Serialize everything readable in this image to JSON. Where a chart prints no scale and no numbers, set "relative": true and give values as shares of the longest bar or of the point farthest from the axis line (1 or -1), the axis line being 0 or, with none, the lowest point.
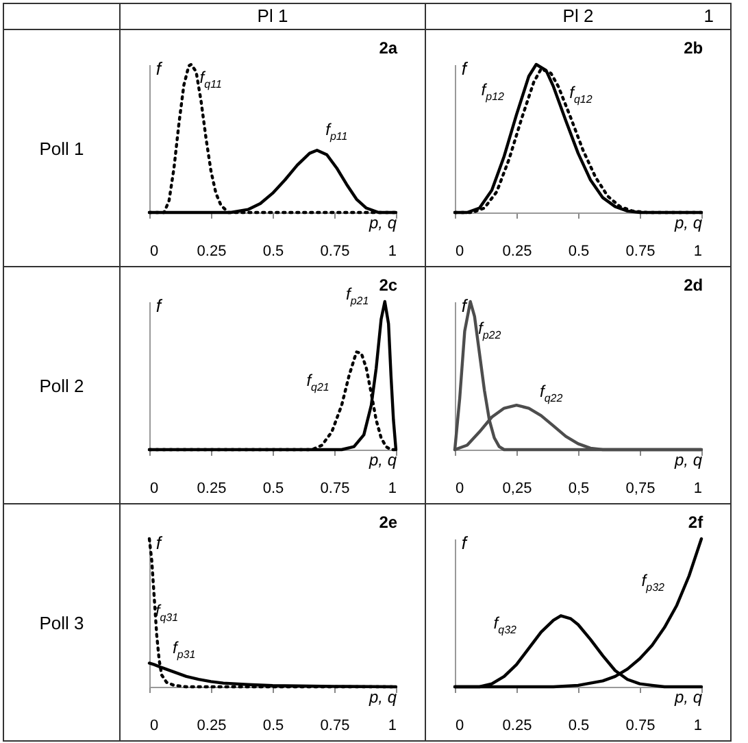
{
  "chart_data": [
    {
      "type": "line",
      "title": "2a",
      "xlabel": "p, q",
      "ylabel": "f",
      "relative": true,
      "xlim": [
        0,
        1
      ],
      "xticks": [
        0,
        0.25,
        0.5,
        0.75,
        1
      ],
      "annotations": [
        "Pl 1",
        "Poll 1",
        {
          "text": "f$_{q11}$",
          "x": 0.21,
          "y": 0.75
        },
        {
          "text": "f$_{p11}$",
          "x": 0.72,
          "y": 0.39
        }
      ],
      "series": [
        {
          "color": "#000000",
          "line_style": "dotted",
          "x": [
            0,
            0.06,
            0.08,
            0.1,
            0.12,
            0.14,
            0.16,
            0.17,
            0.19,
            0.21,
            0.23,
            0.25,
            0.27,
            0.29,
            0.32,
            1
          ],
          "values": [
            0,
            0,
            0.08,
            0.3,
            0.6,
            0.86,
            0.99,
            1,
            0.95,
            0.75,
            0.5,
            0.28,
            0.13,
            0.05,
            0,
            0
          ]
        },
        {
          "color": "#000000",
          "line_style": "solid",
          "x": [
            0,
            0.33,
            0.4,
            0.45,
            0.5,
            0.55,
            0.6,
            0.65,
            0.68,
            0.72,
            0.76,
            0.8,
            0.84,
            0.88,
            0.93,
            1
          ],
          "values": [
            0,
            0,
            0.02,
            0.06,
            0.13,
            0.22,
            0.32,
            0.4,
            0.42,
            0.39,
            0.3,
            0.19,
            0.09,
            0.03,
            0,
            0
          ]
        }
      ]
    },
    {
      "type": "line",
      "title": "2b",
      "xlabel": "p, q",
      "ylabel": "f",
      "relative": true,
      "xlim": [
        0,
        1
      ],
      "xticks": [
        0,
        0.25,
        0.5,
        0.75,
        1
      ],
      "annotations": [
        "Pl 2",
        "1",
        {
          "text": "f$_{p12}$",
          "x": 0.25,
          "y": 0.66
        },
        {
          "text": "f$_{q12}$",
          "x": 0.47,
          "y": 0.64
        }
      ],
      "series": [
        {
          "color": "#000000",
          "line_style": "solid",
          "x": [
            0,
            0.05,
            0.1,
            0.15,
            0.2,
            0.25,
            0.3,
            0.33,
            0.37,
            0.4,
            0.45,
            0.5,
            0.55,
            0.6,
            0.65,
            0.7,
            0.75,
            1
          ],
          "values": [
            0,
            0,
            0.03,
            0.15,
            0.38,
            0.66,
            0.92,
            1,
            0.96,
            0.85,
            0.62,
            0.4,
            0.22,
            0.1,
            0.04,
            0.01,
            0,
            0
          ]
        },
        {
          "color": "#000000",
          "line_style": "dotted",
          "x": [
            0,
            0.07,
            0.12,
            0.17,
            0.22,
            0.27,
            0.32,
            0.35,
            0.39,
            0.42,
            0.47,
            0.52,
            0.57,
            0.62,
            0.67,
            0.72,
            0.78,
            1
          ],
          "values": [
            0,
            0,
            0.03,
            0.14,
            0.36,
            0.63,
            0.88,
            0.97,
            0.94,
            0.85,
            0.64,
            0.42,
            0.24,
            0.11,
            0.04,
            0.01,
            0,
            0
          ]
        }
      ]
    },
    {
      "type": "line",
      "title": "2c",
      "xlabel": "p, q",
      "ylabel": "f",
      "relative": true,
      "xlim": [
        0,
        1
      ],
      "xticks": [
        0,
        0.25,
        0.5,
        0.75,
        1
      ],
      "annotations": [
        "Poll 2",
        {
          "text": "f$_{p21}$",
          "x": 0.94,
          "y": 0.88
        },
        {
          "text": "f$_{q21}$",
          "x": 0.78,
          "y": 0.3
        }
      ],
      "series": [
        {
          "color": "#000000",
          "line_style": "solid",
          "x": [
            0,
            0.78,
            0.83,
            0.87,
            0.9,
            0.92,
            0.94,
            0.955,
            0.97,
            0.98,
            0.99,
            1
          ],
          "values": [
            0,
            0,
            0.02,
            0.1,
            0.3,
            0.55,
            0.88,
            1,
            0.85,
            0.5,
            0.2,
            0
          ]
        },
        {
          "color": "#000000",
          "line_style": "dotted",
          "x": [
            0,
            0.66,
            0.7,
            0.74,
            0.78,
            0.81,
            0.84,
            0.86,
            0.88,
            0.9,
            0.92,
            0.94,
            0.96,
            0.98,
            1
          ],
          "values": [
            0,
            0,
            0.03,
            0.12,
            0.3,
            0.5,
            0.66,
            0.65,
            0.55,
            0.38,
            0.2,
            0.08,
            0.02,
            0,
            0
          ]
        }
      ]
    },
    {
      "type": "line",
      "title": "2d",
      "xlabel": "p, q",
      "ylabel": "f",
      "relative": true,
      "xlim": [
        0,
        1
      ],
      "xticks": [
        0,
        {
          "value": 0.25,
          "label": "0,25"
        },
        {
          "value": 0.5,
          "label": "0,5"
        },
        {
          "value": 0.75,
          "label": "0,75"
        },
        1
      ],
      "annotations": [
        {
          "text": "f$_{p22}$",
          "x": 0.1,
          "y": 0.65
        },
        {
          "text": "f$_{q22}$",
          "x": 0.35,
          "y": 0.23
        }
      ],
      "series": [
        {
          "color": "#4d4d4d",
          "line_style": "solid",
          "x": [
            0,
            0.02,
            0.04,
            0.063,
            0.08,
            0.1,
            0.12,
            0.14,
            0.16,
            0.18,
            0.2,
            1
          ],
          "values": [
            0,
            0.35,
            0.8,
            1,
            0.9,
            0.65,
            0.4,
            0.2,
            0.08,
            0.02,
            0,
            0
          ]
        },
        {
          "color": "#4d4d4d",
          "line_style": "solid",
          "x": [
            0,
            0.05,
            0.1,
            0.15,
            0.2,
            0.25,
            0.3,
            0.35,
            0.4,
            0.45,
            0.5,
            0.55,
            0.6,
            1
          ],
          "values": [
            0,
            0.03,
            0.12,
            0.22,
            0.28,
            0.3,
            0.28,
            0.23,
            0.16,
            0.09,
            0.04,
            0.01,
            0,
            0
          ]
        }
      ]
    },
    {
      "type": "line",
      "title": "2e",
      "xlabel": "p, q",
      "ylabel": "f",
      "relative": true,
      "xlim": [
        0,
        1
      ],
      "xticks": [
        0,
        0.25,
        0.5,
        0.75,
        1
      ],
      "annotations": [
        "Poll 3",
        {
          "text": "f$_{q31}$",
          "x": 0.03,
          "y": 0.35
        },
        {
          "text": "f$_{p31}$",
          "x": 0.1,
          "y": 0.1
        }
      ],
      "series": [
        {
          "color": "#000000",
          "line_style": "dotted",
          "x": [
            0,
            0.01,
            0.02,
            0.03,
            0.04,
            0.05,
            0.07,
            0.1,
            0.15,
            1
          ],
          "values": [
            1,
            0.85,
            0.6,
            0.35,
            0.18,
            0.08,
            0.03,
            0.01,
            0,
            0
          ]
        },
        {
          "color": "#000000",
          "line_style": "solid",
          "x": [
            0,
            0.02,
            0.05,
            0.1,
            0.15,
            0.2,
            0.25,
            0.3,
            0.4,
            0.5,
            0.75,
            1
          ],
          "values": [
            0.16,
            0.15,
            0.13,
            0.1,
            0.07,
            0.05,
            0.035,
            0.025,
            0.015,
            0.008,
            0.003,
            0
          ]
        }
      ]
    },
    {
      "type": "line",
      "title": "2f",
      "xlabel": "p, q",
      "ylabel": "f",
      "relative": true,
      "xlim": [
        0,
        1
      ],
      "xticks": [
        0,
        0.25,
        0.5,
        0.75,
        1
      ],
      "annotations": [
        {
          "text": "f$_{q32}$",
          "x": 0.3,
          "y": 0.26
        },
        {
          "text": "f$_{p32}$",
          "x": 0.9,
          "y": 0.55
        }
      ],
      "series": [
        {
          "color": "#000000",
          "line_style": "solid",
          "x": [
            0,
            0.1,
            0.15,
            0.2,
            0.25,
            0.3,
            0.35,
            0.4,
            0.43,
            0.47,
            0.5,
            0.55,
            0.6,
            0.65,
            0.7,
            0.75,
            0.8,
            0.85,
            1
          ],
          "values": [
            0,
            0,
            0.02,
            0.07,
            0.15,
            0.26,
            0.37,
            0.45,
            0.48,
            0.46,
            0.42,
            0.32,
            0.21,
            0.11,
            0.05,
            0.02,
            0.01,
            0,
            0
          ]
        },
        {
          "color": "#000000",
          "line_style": "solid",
          "x": [
            0,
            0.4,
            0.5,
            0.6,
            0.65,
            0.7,
            0.75,
            0.8,
            0.85,
            0.9,
            0.95,
            1
          ],
          "values": [
            0,
            0,
            0.01,
            0.04,
            0.07,
            0.12,
            0.19,
            0.28,
            0.4,
            0.55,
            0.75,
            1
          ]
        }
      ]
    }
  ]
}
